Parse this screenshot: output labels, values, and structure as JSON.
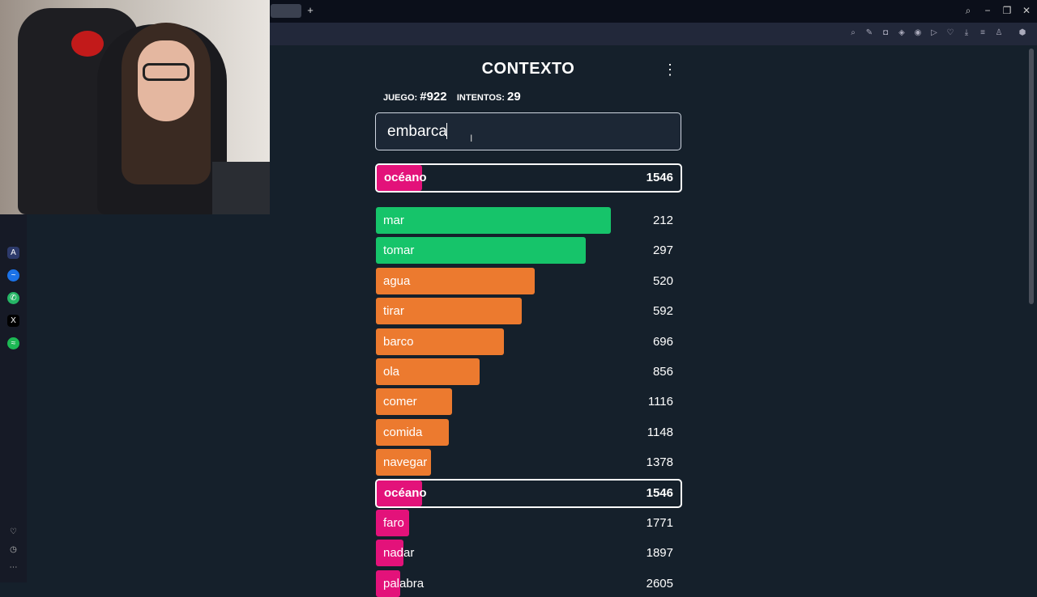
{
  "game": {
    "title": "CONTEXTO",
    "game_label": "JUEGO:",
    "game_number": "#922",
    "attempts_label": "INTENTOS:",
    "attempts_count": "29",
    "input_value": "embarca"
  },
  "last_guess": {
    "word": "océano",
    "rank": "1546",
    "color": "#e3127a",
    "fill": 0.15
  },
  "guesses": [
    {
      "word": "mar",
      "rank": "212",
      "color": "#16c46a",
      "fill": 0.77
    },
    {
      "word": "tomar",
      "rank": "297",
      "color": "#16c46a",
      "fill": 0.69
    },
    {
      "word": "agua",
      "rank": "520",
      "color": "#ec7a2f",
      "fill": 0.52
    },
    {
      "word": "tirar",
      "rank": "592",
      "color": "#ec7a2f",
      "fill": 0.48
    },
    {
      "word": "barco",
      "rank": "696",
      "color": "#ec7a2f",
      "fill": 0.42
    },
    {
      "word": "ola",
      "rank": "856",
      "color": "#ec7a2f",
      "fill": 0.34
    },
    {
      "word": "comer",
      "rank": "1116",
      "color": "#ec7a2f",
      "fill": 0.25
    },
    {
      "word": "comida",
      "rank": "1148",
      "color": "#ec7a2f",
      "fill": 0.24
    },
    {
      "word": "navegar",
      "rank": "1378",
      "color": "#ec7a2f",
      "fill": 0.18
    },
    {
      "word": "océano",
      "rank": "1546",
      "color": "#e3127a",
      "fill": 0.15,
      "highlight": true
    },
    {
      "word": "faro",
      "rank": "1771",
      "color": "#e3127a",
      "fill": 0.11
    },
    {
      "word": "nadar",
      "rank": "1897",
      "color": "#e3127a",
      "fill": 0.09
    },
    {
      "word": "palabra",
      "rank": "2605",
      "color": "#e3127a",
      "fill": 0.03
    }
  ],
  "icons": {
    "sidebar": [
      "aria-icon",
      "messenger-icon",
      "whatsapp-icon",
      "x-icon",
      "spotify-icon",
      "heart-icon",
      "history-icon",
      "more-icon"
    ],
    "toolbar": [
      "zoom-icon",
      "edit-icon",
      "camera-icon",
      "shield-icon",
      "vpn-icon",
      "play-icon",
      "heart-icon",
      "download-icon",
      "menu-icon",
      "profile-icon",
      "extensions-icon"
    ]
  }
}
